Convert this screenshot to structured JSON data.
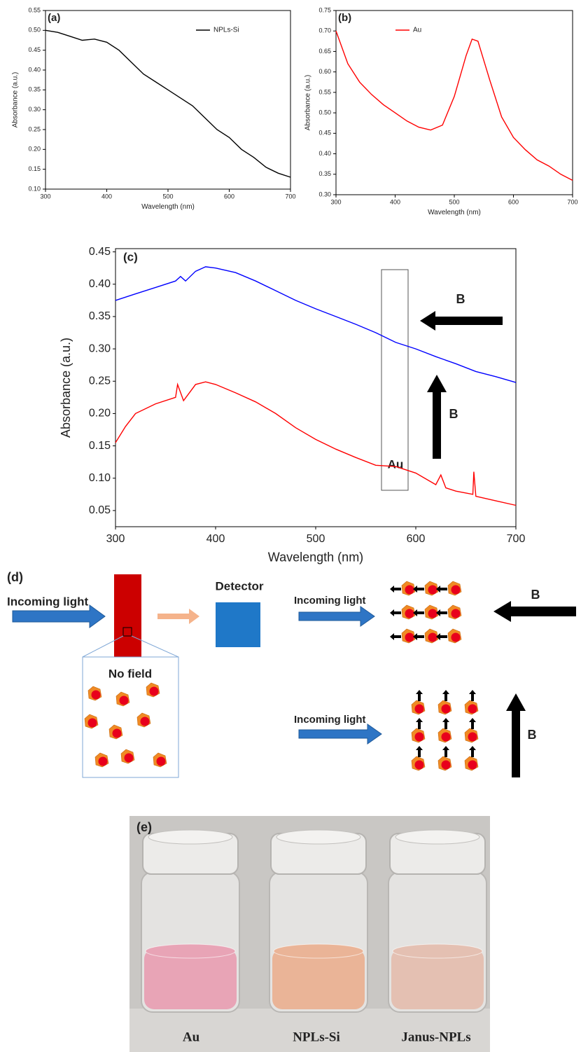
{
  "chart_data": [
    {
      "type": "line",
      "label": "(a)",
      "xlabel": "Wavelength (nm)",
      "ylabel": "Absorbance (a.u.)",
      "x": [
        300,
        320,
        340,
        360,
        380,
        400,
        420,
        440,
        460,
        480,
        500,
        520,
        540,
        560,
        580,
        600,
        620,
        640,
        660,
        680,
        700
      ],
      "series": [
        {
          "name": "NPLs-Si",
          "color": "#000000",
          "values": [
            0.5,
            0.495,
            0.485,
            0.475,
            0.478,
            0.47,
            0.45,
            0.42,
            0.39,
            0.37,
            0.35,
            0.33,
            0.31,
            0.28,
            0.25,
            0.23,
            0.2,
            0.18,
            0.155,
            0.14,
            0.13
          ]
        }
      ],
      "xlim": [
        300,
        700
      ],
      "xticks": [
        300,
        400,
        500,
        600,
        700
      ],
      "ylim": [
        0.1,
        0.55
      ],
      "yticks": [
        {
          "value": 0.1,
          "label": "0.10"
        },
        0.15,
        {
          "value": 0.2,
          "label": "0.20"
        },
        0.25,
        {
          "value": 0.3,
          "label": "0.30"
        },
        0.35,
        {
          "value": 0.4,
          "label": "0.40"
        },
        0.45,
        {
          "value": 0.5,
          "label": "0.50"
        },
        0.55
      ],
      "legend": "upper right"
    },
    {
      "type": "line",
      "label": "(b)",
      "xlabel": "Wavelength (nm)",
      "ylabel": "Absorbance (a.u.)",
      "x": [
        300,
        320,
        340,
        360,
        380,
        400,
        420,
        440,
        460,
        480,
        500,
        520,
        530,
        540,
        560,
        580,
        600,
        620,
        640,
        660,
        680,
        700
      ],
      "series": [
        {
          "name": "Au",
          "color": "#ff0000",
          "values": [
            0.7,
            0.62,
            0.575,
            0.545,
            0.52,
            0.5,
            0.48,
            0.465,
            0.458,
            0.47,
            0.54,
            0.64,
            0.68,
            0.675,
            0.58,
            0.49,
            0.44,
            0.41,
            0.385,
            0.37,
            0.35,
            0.335
          ]
        }
      ],
      "xlim": [
        300,
        700
      ],
      "xticks": [
        300,
        400,
        500,
        600,
        700
      ],
      "ylim": [
        0.3,
        0.75
      ],
      "yticks": [
        {
          "value": 0.3,
          "label": "0.30"
        },
        0.35,
        {
          "value": 0.4,
          "label": "0.40"
        },
        0.45,
        {
          "value": 0.5,
          "label": "0.50"
        },
        0.55,
        {
          "value": 0.6,
          "label": "0.60"
        },
        0.65,
        {
          "value": 0.7,
          "label": "0.70"
        },
        0.75
      ],
      "legend": "upper left"
    },
    {
      "type": "line",
      "label": "(c)",
      "xlabel": "Wavelength (nm)",
      "ylabel": "Absorbance (a.u.)",
      "annotations": [
        "Au",
        "B",
        "B"
      ],
      "series": [
        {
          "color": "#0000ff",
          "x": [
            300,
            320,
            340,
            360,
            365,
            370,
            380,
            390,
            400,
            420,
            440,
            460,
            480,
            500,
            520,
            540,
            560,
            580,
            600,
            620,
            640,
            660,
            680,
            700
          ],
          "values": [
            0.375,
            0.385,
            0.395,
            0.405,
            0.412,
            0.405,
            0.42,
            0.427,
            0.425,
            0.418,
            0.405,
            0.39,
            0.375,
            0.362,
            0.35,
            0.338,
            0.325,
            0.31,
            0.3,
            0.288,
            0.277,
            0.265,
            0.257,
            0.248
          ]
        },
        {
          "color": "#ff0000",
          "x": [
            300,
            310,
            320,
            340,
            360,
            362,
            368,
            380,
            390,
            400,
            420,
            440,
            460,
            480,
            500,
            520,
            540,
            560,
            580,
            600,
            620,
            625,
            630,
            640,
            657,
            658,
            660,
            680,
            700
          ],
          "values": [
            0.155,
            0.18,
            0.2,
            0.215,
            0.225,
            0.245,
            0.22,
            0.245,
            0.249,
            0.245,
            0.232,
            0.218,
            0.2,
            0.178,
            0.16,
            0.145,
            0.132,
            0.12,
            0.118,
            0.108,
            0.09,
            0.105,
            0.085,
            0.08,
            0.075,
            0.11,
            0.072,
            0.065,
            0.058
          ]
        }
      ],
      "xlim": [
        300,
        700
      ],
      "xticks": [
        300,
        400,
        500,
        600,
        700
      ],
      "ylim": [
        0.025,
        0.455
      ],
      "yticks": [
        0.05,
        {
          "value": 0.1,
          "label": "0.10"
        },
        0.15,
        {
          "value": 0.2,
          "label": "0.20"
        },
        0.25,
        {
          "value": 0.3,
          "label": "0.30"
        },
        0.35,
        {
          "value": 0.4,
          "label": "0.40"
        },
        0.45
      ]
    }
  ],
  "diagram": {
    "label": "(d)",
    "source_text": "Incoming light",
    "detector": "Detector",
    "inset": "No field",
    "panels": [
      {
        "text": "Incoming light",
        "field": "B"
      },
      {
        "text": "Incoming light",
        "field": "B"
      }
    ]
  },
  "photo": {
    "label": "(e)",
    "vials": [
      "Au",
      "NPLs-Si",
      "Janus-NPLs"
    ]
  }
}
